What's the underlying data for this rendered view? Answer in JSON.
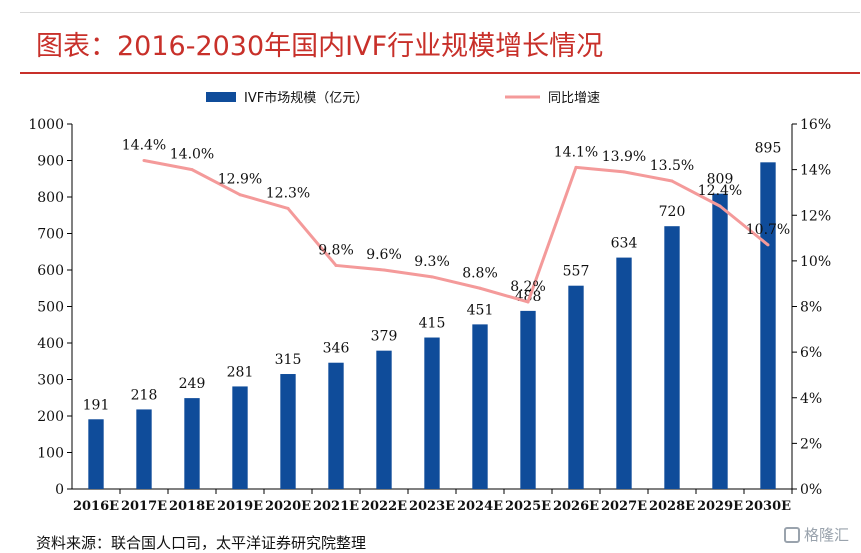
{
  "title": "图表：2016-2030年国内IVF行业规模增长情况",
  "source": "资料来源：联合国人口司，太平洋证券研究院整理",
  "watermark": "格隆汇",
  "colors": {
    "bar": "#0f4c9a",
    "line": "#f49a9a",
    "title": "#c8302a"
  },
  "chart_data": {
    "type": "bar",
    "categories": [
      "2016E",
      "2017E",
      "2018E",
      "2019E",
      "2020E",
      "2021E",
      "2022E",
      "2023E",
      "2024E",
      "2025E",
      "2026E",
      "2027E",
      "2028E",
      "2029E",
      "2030E"
    ],
    "series": [
      {
        "name": "IVF市场规模（亿元）",
        "type": "bar",
        "axis": "left",
        "values": [
          191,
          218,
          249,
          281,
          315,
          346,
          379,
          415,
          451,
          488,
          557,
          634,
          720,
          809,
          895
        ],
        "labels": [
          "191",
          "218",
          "249",
          "281",
          "315",
          "346",
          "379",
          "415",
          "451",
          "488",
          "557",
          "634",
          "720",
          "809",
          "895"
        ]
      },
      {
        "name": "同比增速",
        "type": "line",
        "axis": "right",
        "values": [
          null,
          14.4,
          14.0,
          12.9,
          12.3,
          9.8,
          9.6,
          9.3,
          8.8,
          8.2,
          14.1,
          13.9,
          13.5,
          12.4,
          10.7
        ],
        "labels": [
          "",
          "14.4%",
          "14.0%",
          "12.9%",
          "12.3%",
          "9.8%",
          "9.6%",
          "9.3%",
          "8.8%",
          "8.2%",
          "14.1%",
          "13.9%",
          "13.5%",
          "12.4%",
          "10.7%"
        ]
      }
    ],
    "ylim": [
      0,
      1000
    ],
    "yticks": [
      "0",
      "100",
      "200",
      "300",
      "400",
      "500",
      "600",
      "700",
      "800",
      "900",
      "1000"
    ],
    "y2lim": [
      0,
      16
    ],
    "y2ticks": [
      "0%",
      "2%",
      "4%",
      "6%",
      "8%",
      "10%",
      "12%",
      "14%",
      "16%"
    ],
    "legend": "top",
    "grid": false
  }
}
